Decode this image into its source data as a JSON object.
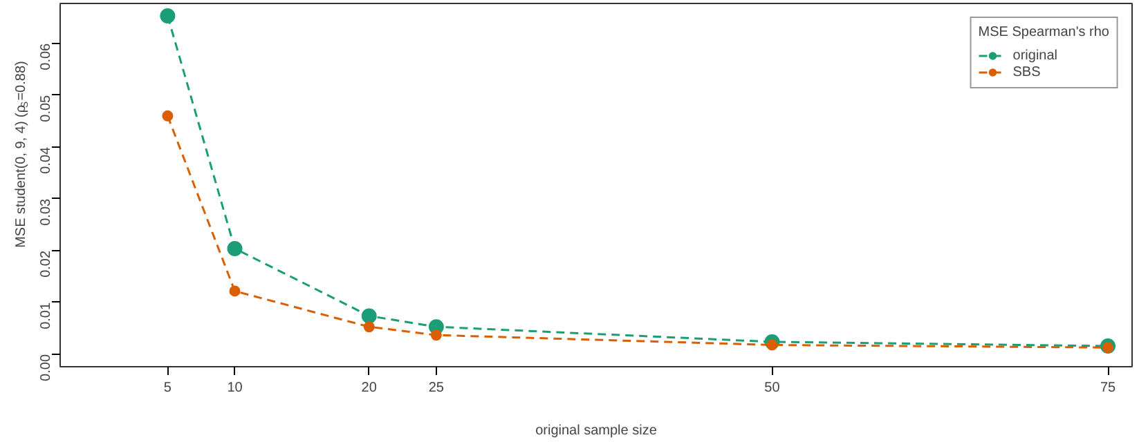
{
  "chart_data": {
    "type": "line",
    "xlabel": "original sample size",
    "ylabel": "MSE student(0, 9, 4) (ρ$_{S}$=0.88)",
    "legend_title": "MSE Spearman's rho",
    "x": [
      5,
      10,
      20,
      25,
      50,
      75
    ],
    "series": [
      {
        "name": "original",
        "color": "#1b9e77",
        "values": [
          0.0653,
          0.0204,
          0.0074,
          0.0053,
          0.0024,
          0.0016
        ]
      },
      {
        "name": "SBS",
        "color": "#d95f02",
        "values": [
          0.046,
          0.0122,
          0.0053,
          0.0037,
          0.0018,
          0.0013
        ]
      }
    ],
    "xlim": [
      -3,
      76.8
    ],
    "ylim": [
      -0.0024,
      0.0677
    ],
    "xticks": [
      5,
      10,
      20,
      25,
      50,
      75
    ],
    "yticks": [
      {
        "value": 0,
        "label": "0.00"
      },
      {
        "value": 0.01,
        "label": "0.01"
      },
      {
        "value": 0.02,
        "label": "0.02"
      },
      {
        "value": 0.03,
        "label": "0.03"
      },
      {
        "value": 0.04,
        "label": "0.04"
      },
      {
        "value": 0.05,
        "label": "0.05"
      },
      {
        "value": 0.06,
        "label": "0.06"
      }
    ],
    "grid": false,
    "legend": "top right",
    "marker": "circle",
    "line_style": "dashed"
  }
}
